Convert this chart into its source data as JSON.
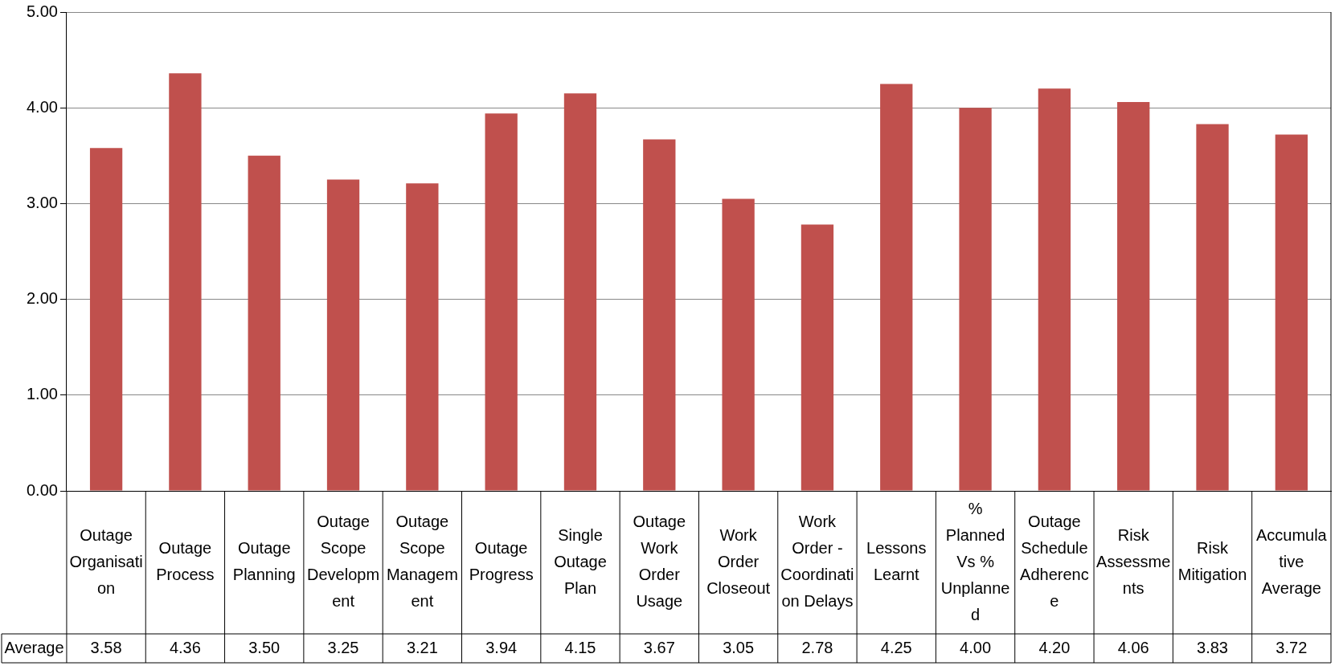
{
  "chart_data": {
    "type": "bar",
    "categories": [
      "Outage Organisation",
      "Outage Process",
      "Outage Planning",
      "Outage Scope Development",
      "Outage Scope Management",
      "Outage Progress",
      "Single Outage Plan",
      "Outage Work Order Usage",
      "Work Order Closeout",
      "Work Order - Coordination Delays",
      "Lessons Learnt",
      "% Planned Vs % Unplanned",
      "Outage Schedule Adherence",
      "Risk Assessments",
      "Risk Mitigation",
      "Accumulative Average"
    ],
    "series": [
      {
        "name": "Average",
        "color": "#c0504d",
        "values": [
          3.58,
          4.36,
          3.5,
          3.25,
          3.21,
          3.94,
          4.15,
          3.67,
          3.05,
          2.78,
          4.25,
          4.0,
          4.2,
          4.06,
          3.83,
          3.72
        ],
        "value_labels": [
          "3.58",
          "4.36",
          "3.50",
          "3.25",
          "3.21",
          "3.94",
          "4.15",
          "3.67",
          "3.05",
          "2.78",
          "4.25",
          "4.00",
          "4.20",
          "4.06",
          "3.83",
          "3.72"
        ]
      }
    ],
    "ylim": [
      0,
      5
    ],
    "yticks": [
      {
        "value": 0,
        "label": "0.00"
      },
      {
        "value": 1,
        "label": "1.00"
      },
      {
        "value": 2,
        "label": "2.00"
      },
      {
        "value": 3,
        "label": "3.00"
      },
      {
        "value": 4,
        "label": "4.00"
      },
      {
        "value": 5,
        "label": "5.00"
      }
    ],
    "grid": "y"
  }
}
